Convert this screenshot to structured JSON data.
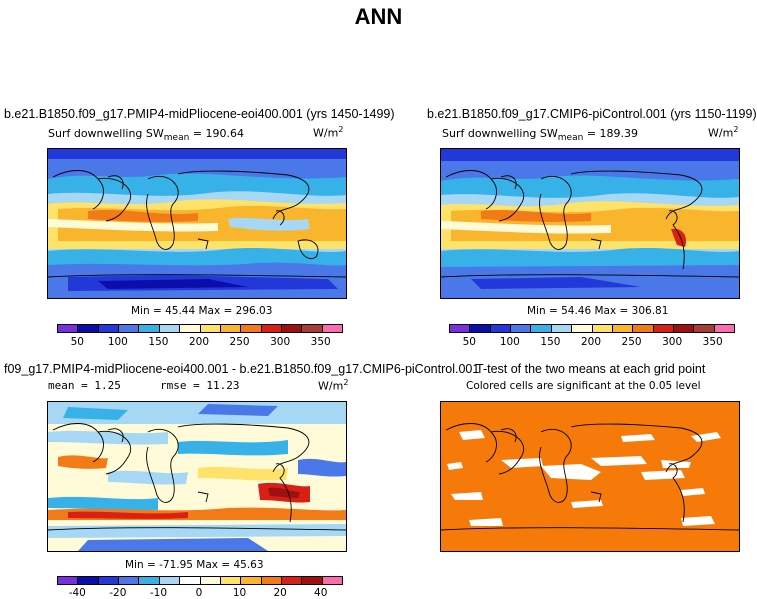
{
  "title": "ANN",
  "panels": {
    "p1": {
      "title": "b.e21.B1850.f09_g17.PMIP4-midPliocene-eoi400.001 (yrs 1450-1499)",
      "var_label": "Surf downwelling SW",
      "stat_label": "mean",
      "stat_value": "= 190.64",
      "units": "W/m",
      "units_exp": "2",
      "minmax": "Min =  45.44 Max = 296.03"
    },
    "p2": {
      "title": "b.e21.B1850.f09_g17.CMIP6-piControl.001 (yrs 1150-1199)",
      "var_label": "Surf downwelling SW",
      "stat_label": "mean",
      "stat_value": "= 189.39",
      "units": "W/m",
      "units_exp": "2",
      "minmax": "Min =  54.46 Max = 306.81"
    },
    "p3": {
      "title": "f09_g17.PMIP4-midPliocene-eoi400.001 - b.e21.B1850.f09_g17.CMIP6-piControl.001",
      "mean_text": "mean =   1.25",
      "rmse_text": "rmse =  11.23",
      "units": "W/m",
      "units_exp": "2",
      "minmax": "Min = -71.95 Max =  45.63"
    },
    "p4": {
      "title": "T-test of the two means at each grid point",
      "subtitle": "Colored cells are significant at the 0.05 level"
    }
  },
  "colors": {
    "abs_scale": [
      "#7a2ee0",
      "#0b0ea8",
      "#2238d8",
      "#4a78e8",
      "#37b2e8",
      "#a6d8f6",
      "#fffbd8",
      "#ffe26a",
      "#f9b52c",
      "#f27a17",
      "#d82014",
      "#a01010",
      "#a83a3a",
      "#ff69b4"
    ],
    "diff_scale": [
      "#7a2ee0",
      "#0b0ea8",
      "#2238d8",
      "#4a78e8",
      "#37b2e8",
      "#a6d8f6",
      "#ffffff",
      "#fffbd8",
      "#ffe26a",
      "#f9b52c",
      "#f27a17",
      "#d82014",
      "#a01010",
      "#ff69b4"
    ],
    "ttest": "#f57a0a"
  },
  "chart_data": [
    {
      "type": "heatmap",
      "title": "b.e21.B1850.f09_g17.PMIP4-midPliocene-eoi400.001 (yrs 1450-1499)",
      "variable": "Surf downwelling SW",
      "units": "W/m2",
      "mean": 190.64,
      "min": 45.44,
      "max": 296.03,
      "levels": [
        25,
        50,
        75,
        100,
        125,
        150,
        175,
        200,
        225,
        250,
        275,
        300,
        325,
        350
      ],
      "colorbar_ticks": [
        "50",
        "100",
        "150",
        "200",
        "250",
        "300",
        "350"
      ]
    },
    {
      "type": "heatmap",
      "title": "b.e21.B1850.f09_g17.CMIP6-piControl.001 (yrs 1150-1199)",
      "variable": "Surf downwelling SW",
      "units": "W/m2",
      "mean": 189.39,
      "min": 54.46,
      "max": 306.81,
      "levels": [
        25,
        50,
        75,
        100,
        125,
        150,
        175,
        200,
        225,
        250,
        275,
        300,
        325,
        350
      ],
      "colorbar_ticks": [
        "50",
        "100",
        "150",
        "200",
        "250",
        "300",
        "350"
      ]
    },
    {
      "type": "heatmap",
      "title": "f09_g17.PMIP4-midPliocene-eoi400.001 - b.e21.B1850.f09_g17.CMIP6-piControl.001",
      "units": "W/m2",
      "mean": 1.25,
      "rmse": 11.23,
      "min": -71.95,
      "max": 45.63,
      "levels": [
        -50,
        -40,
        -30,
        -20,
        -15,
        -10,
        -5,
        0,
        5,
        10,
        15,
        20,
        30,
        40,
        50
      ],
      "colorbar_ticks": [
        "-40",
        "-20",
        "-10",
        "0",
        "10",
        "20",
        "40"
      ]
    },
    {
      "type": "heatmap",
      "title": "T-test of the two means at each grid point",
      "subtitle": "Colored cells are significant at the 0.05 level",
      "significance_level": 0.05
    }
  ]
}
